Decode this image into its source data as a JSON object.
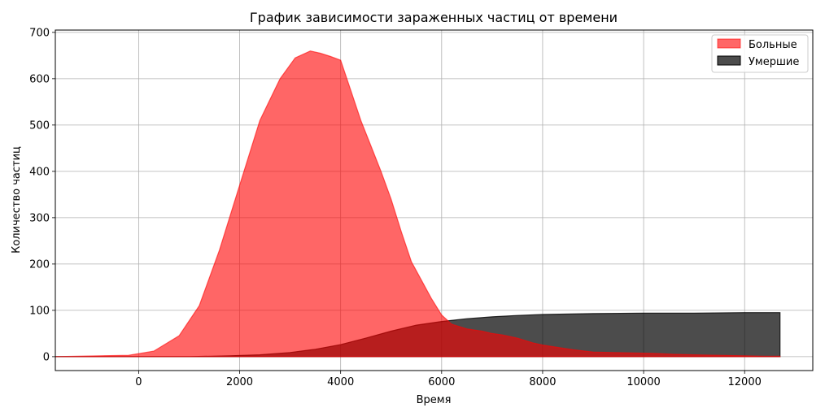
{
  "chart_data": {
    "type": "area",
    "title": "График зависимости зараженных частиц от времени",
    "xlabel": "Время",
    "ylabel": "Количество частиц",
    "xlim": [
      -1650,
      13350
    ],
    "ylim": [
      -30,
      705
    ],
    "x_ticks": [
      0,
      2000,
      4000,
      6000,
      8000,
      10000,
      12000
    ],
    "y_ticks": [
      0,
      100,
      200,
      300,
      400,
      500,
      600,
      700
    ],
    "grid": true,
    "legend": "top-right",
    "series": [
      {
        "name": "Больные",
        "color": "#ff0000",
        "x": [
          -1650,
          -200,
          300,
          800,
          1200,
          1600,
          2000,
          2400,
          2800,
          3100,
          3400,
          3600,
          3800,
          4000,
          4200,
          4400,
          4600,
          4800,
          5000,
          5200,
          5400,
          5600,
          5800,
          6000,
          6200,
          6500,
          6800,
          7000,
          7200,
          7500,
          7800,
          8000,
          8300,
          8600,
          9000,
          9400,
          9800,
          10200,
          10600,
          11000,
          11500,
          12000,
          12400,
          12700
        ],
        "values": [
          0,
          3,
          12,
          45,
          110,
          230,
          370,
          510,
          600,
          645,
          660,
          655,
          648,
          640,
          575,
          510,
          455,
          400,
          340,
          270,
          205,
          165,
          125,
          90,
          70,
          60,
          55,
          50,
          47,
          40,
          30,
          25,
          20,
          15,
          10,
          9,
          8,
          7,
          5,
          4,
          3,
          2,
          1,
          1
        ]
      },
      {
        "name": "Умершие",
        "color": "#000000",
        "x": [
          -1650,
          1000,
          1800,
          2400,
          3000,
          3500,
          4000,
          4500,
          5000,
          5500,
          6000,
          6500,
          7000,
          7500,
          8000,
          9000,
          10000,
          11000,
          12000,
          12700
        ],
        "values": [
          0,
          0,
          2,
          4,
          9,
          16,
          26,
          40,
          55,
          68,
          76,
          82,
          86,
          89,
          91,
          93,
          94,
          94,
          95,
          95
        ]
      }
    ]
  }
}
